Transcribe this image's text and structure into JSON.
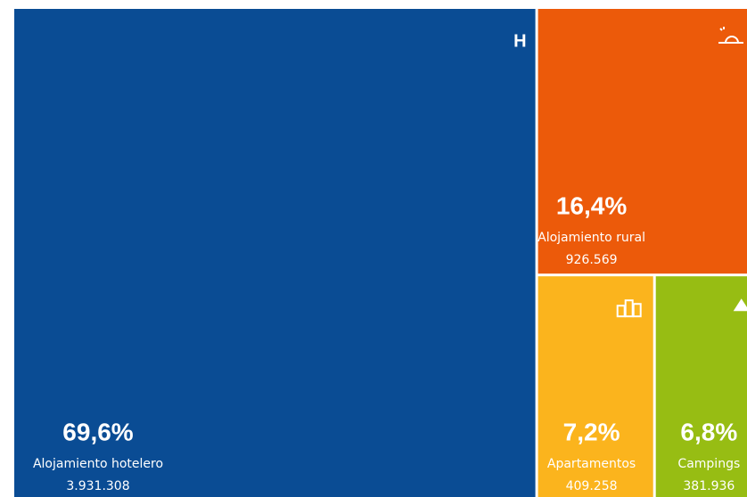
{
  "chart_data": {
    "type": "treemap",
    "categories": [
      "Alojamiento hotelero",
      "Alojamiento rural",
      "Apartamentos",
      "Campings"
    ],
    "values": [
      3931308,
      926569,
      409258,
      381936
    ],
    "value_labels": [
      "3.931.308",
      "926.569",
      "409.258",
      "381.936"
    ],
    "shares": [
      69.6,
      16.4,
      7.2,
      6.8
    ],
    "share_labels": [
      "69,6%",
      "16,4%",
      "7,2%",
      "6,8%"
    ],
    "colors": [
      "#0a4c94",
      "#ec5a0a",
      "#fbb41d",
      "#97bd13"
    ],
    "badge": "H"
  }
}
